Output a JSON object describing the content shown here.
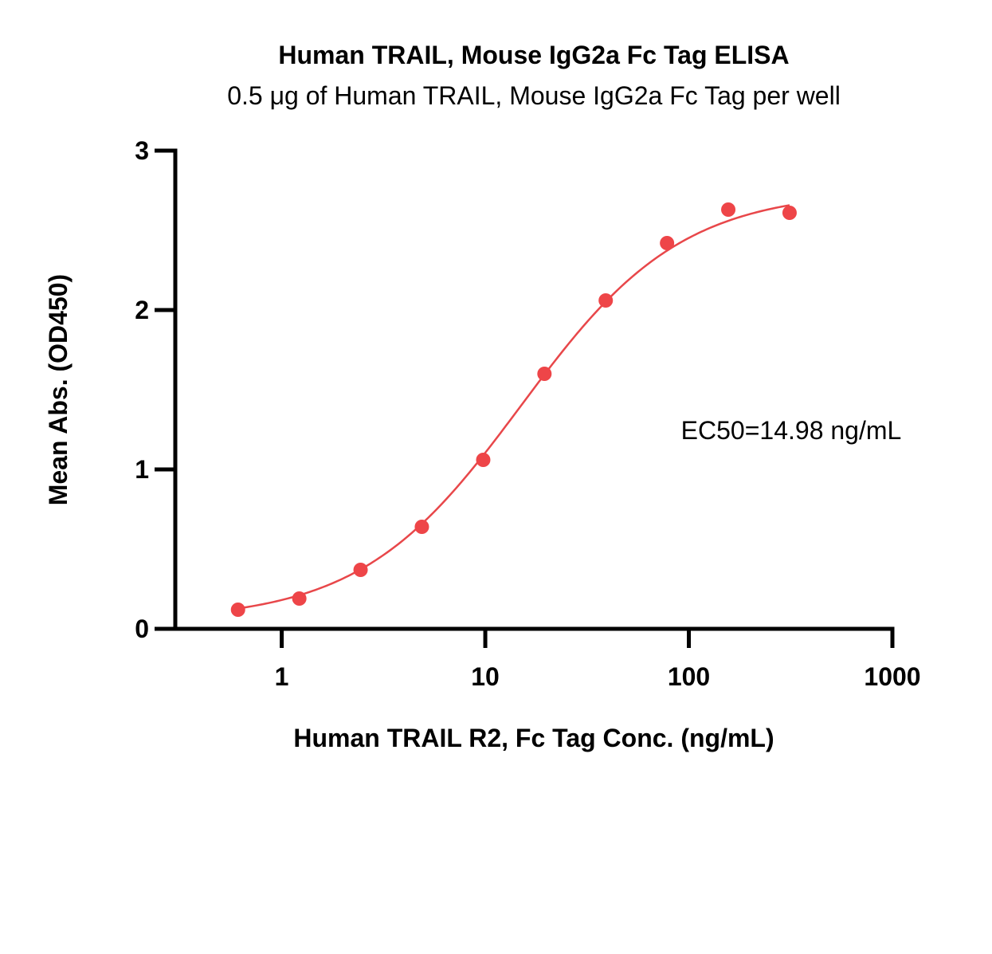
{
  "chart_data": {
    "type": "scatter",
    "title": "Human TRAIL, Mouse IgG2a Fc Tag ELISA",
    "subtitle": "0.5 μg of Human TRAIL, Mouse IgG2a Fc Tag per well",
    "xlabel": "Human TRAIL R2, Fc Tag Conc. (ng/mL)",
    "ylabel": "Mean Abs. (OD450)",
    "x_scale": "log",
    "xlim": [
      0.3,
      1000
    ],
    "ylim": [
      0,
      3
    ],
    "x_ticks": [
      "1",
      "10",
      "100",
      "1000"
    ],
    "y_ticks": [
      "0",
      "1",
      "2",
      "3"
    ],
    "grid": false,
    "annotation": "EC50=14.98 ng/mL",
    "color": "#ee4548",
    "series": [
      {
        "x": [
          0.61,
          1.22,
          2.44,
          4.88,
          9.77,
          19.53,
          39.06,
          78.13,
          156.25,
          312.5
        ],
        "y": [
          0.12,
          0.19,
          0.37,
          0.64,
          1.06,
          1.6,
          2.06,
          2.42,
          2.63,
          2.61
        ]
      }
    ],
    "fit": {
      "model": "4PL",
      "bottom": 0.05,
      "top": 2.75,
      "ec50": 14.98,
      "hill": 1.1
    }
  }
}
